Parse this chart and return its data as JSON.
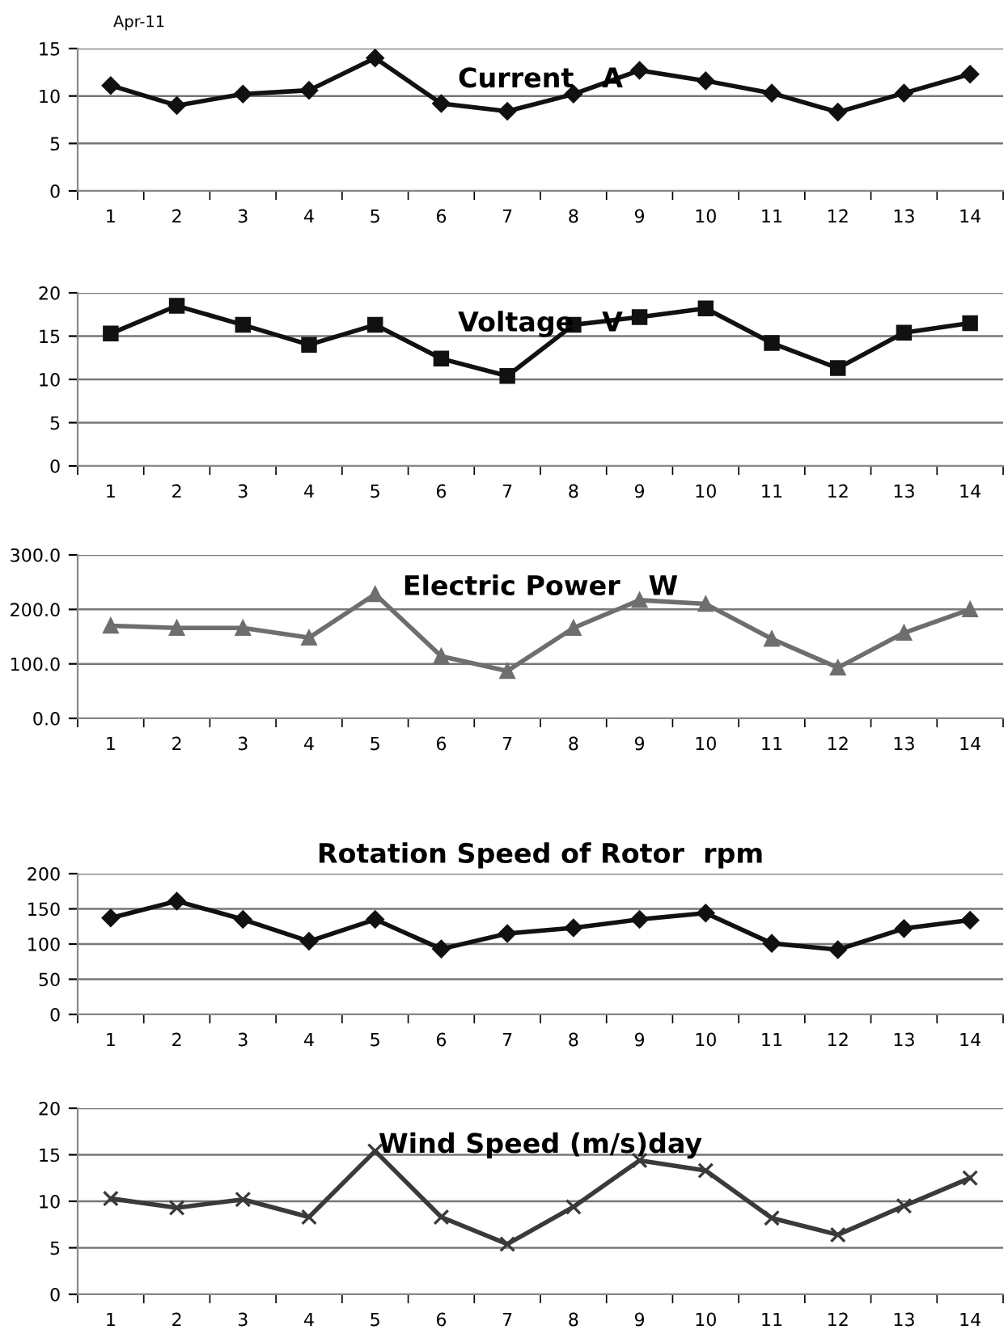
{
  "chart_data": [
    {
      "type": "line",
      "title": "Current   A",
      "annotations": [
        "Apr-11"
      ],
      "categories": [
        "1",
        "2",
        "3",
        "4",
        "5",
        "6",
        "7",
        "8",
        "9",
        "10",
        "11",
        "12",
        "13",
        "14"
      ],
      "series": [
        {
          "color": "#111111",
          "values": [
            11.1,
            9.0,
            10.2,
            10.6,
            14.0,
            9.2,
            8.4,
            10.2,
            12.7,
            11.6,
            10.3,
            8.3,
            10.3,
            12.3
          ]
        }
      ],
      "ylim": [
        0,
        15
      ],
      "yticks": [
        0,
        5,
        10,
        15
      ],
      "grid": "y",
      "marker": "diamond",
      "line_style": "solid"
    },
    {
      "type": "line",
      "title": "Voltage   V",
      "categories": [
        "1",
        "2",
        "3",
        "4",
        "5",
        "6",
        "7",
        "8",
        "9",
        "10",
        "11",
        "12",
        "13",
        "14"
      ],
      "series": [
        {
          "color": "#111111",
          "values": [
            15.3,
            18.5,
            16.3,
            14.0,
            16.3,
            12.4,
            10.4,
            16.3,
            17.2,
            18.2,
            14.2,
            11.3,
            15.4,
            16.5
          ]
        }
      ],
      "ylim": [
        0,
        20
      ],
      "yticks": [
        0,
        5,
        10,
        15,
        20
      ],
      "grid": "y",
      "marker": "square",
      "line_style": "solid"
    },
    {
      "type": "line",
      "title": "Electric Power   W",
      "categories": [
        "1",
        "2",
        "3",
        "4",
        "5",
        "6",
        "7",
        "8",
        "9",
        "10",
        "11",
        "12",
        "13",
        "14"
      ],
      "series": [
        {
          "color": "#6e6e6e",
          "values": [
            170,
            166,
            166,
            148,
            228,
            114,
            87,
            166,
            217,
            210,
            146,
            93,
            157,
            200
          ]
        }
      ],
      "ylim": [
        0,
        300
      ],
      "yticks": [
        {
          "value": 0,
          "label": "0.0"
        },
        {
          "value": 100,
          "label": "100.0"
        },
        {
          "value": 200,
          "label": "200.0"
        },
        {
          "value": 300,
          "label": "300.0"
        }
      ],
      "grid": "y",
      "marker": "triangle",
      "line_style": "solid"
    },
    {
      "type": "line",
      "title": "Rotation Speed of Rotor  rpm",
      "categories": [
        "1",
        "2",
        "3",
        "4",
        "5",
        "6",
        "7",
        "8",
        "9",
        "10",
        "11",
        "12",
        "13",
        "14"
      ],
      "series": [
        {
          "color": "#111111",
          "values": [
            137,
            161,
            135,
            104,
            135,
            93,
            115,
            123,
            135,
            144,
            101,
            92,
            122,
            134
          ]
        }
      ],
      "ylim": [
        0,
        200
      ],
      "yticks": [
        0,
        50,
        100,
        150,
        200
      ],
      "grid": "y",
      "marker": "diamond",
      "line_style": "solid"
    },
    {
      "type": "line",
      "title": "Wind Speed (m/s)day",
      "categories": [
        "1",
        "2",
        "3",
        "4",
        "5",
        "6",
        "7",
        "8",
        "9",
        "10",
        "11",
        "12",
        "13",
        "14"
      ],
      "series": [
        {
          "color": "#3a3a3a",
          "values": [
            10.3,
            9.3,
            10.2,
            8.3,
            15.4,
            8.3,
            5.4,
            9.4,
            14.4,
            13.3,
            8.2,
            6.4,
            9.5,
            12.5
          ]
        }
      ],
      "ylim": [
        0,
        20
      ],
      "yticks": [
        0,
        5,
        10,
        15,
        20
      ],
      "grid": "y",
      "marker": "cross",
      "line_style": "solid"
    }
  ]
}
